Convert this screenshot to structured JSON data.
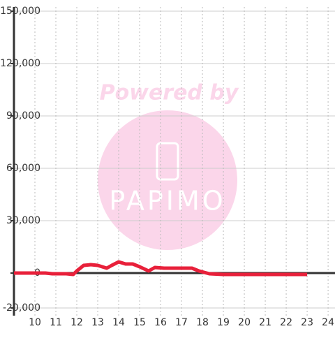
{
  "chart_data": {
    "type": "line",
    "watermark": {
      "title": "Powered by",
      "brand": "PAPIMO"
    },
    "x": [
      9,
      10.5,
      10.83,
      11.5,
      11.83,
      12,
      12.33,
      12.67,
      13,
      13.43,
      13.67,
      14,
      14.33,
      14.67,
      15,
      15.43,
      15.73,
      16.17,
      17.5,
      17.83,
      18.33,
      19,
      23
    ],
    "series": [
      {
        "color": "#e8203a",
        "values": [
          0,
          0,
          -400,
          -400,
          -800,
          1200,
          4400,
          4800,
          4400,
          2800,
          4400,
          6400,
          5200,
          5200,
          3600,
          1200,
          3200,
          2800,
          2800,
          1200,
          -400,
          -800,
          -800
        ]
      }
    ],
    "xlim": [
      9,
      24.33
    ],
    "xticks": [
      10,
      11,
      12,
      13,
      14,
      15,
      16,
      17,
      18,
      19,
      20,
      21,
      22,
      23,
      24
    ],
    "ylim": [
      -20000,
      150000
    ],
    "yticks": [
      {
        "value": -20000,
        "label": "-20,000"
      },
      0,
      {
        "value": 30000,
        "label": "30,000"
      },
      {
        "value": 60000,
        "label": "60,000"
      },
      {
        "value": 90000,
        "label": "90,000"
      },
      {
        "value": 120000,
        "label": "120,000"
      },
      {
        "value": 150000,
        "label": "150,000"
      }
    ],
    "grid": true
  }
}
